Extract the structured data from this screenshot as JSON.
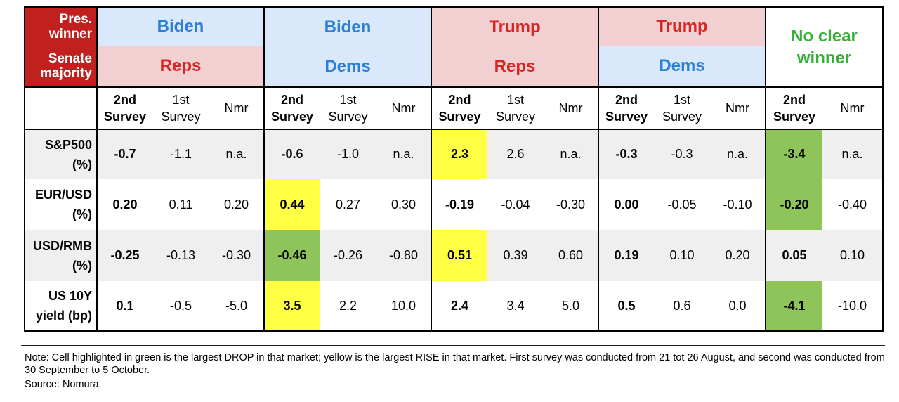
{
  "header": {
    "corner_top": "Pres. winner",
    "corner_bottom": "Senate majority",
    "scenarios": [
      {
        "pres": "Biden",
        "senate": "Reps"
      },
      {
        "pres": "Biden",
        "senate": "Dems"
      },
      {
        "pres": "Trump",
        "senate": "Reps"
      },
      {
        "pres": "Trump",
        "senate": "Dems"
      },
      {
        "pres": "No clear winner"
      }
    ],
    "sub": {
      "second": "2nd Survey",
      "first": "1st Survey",
      "nmr": "Nmr"
    }
  },
  "rows": [
    {
      "label": "S&P500 (%)",
      "values": [
        "-0.7",
        "-1.1",
        "n.a.",
        "-0.6",
        "-1.0",
        "n.a.",
        "2.3",
        "2.6",
        "n.a.",
        "-0.3",
        "-0.3",
        "n.a.",
        "-3.4",
        "n.a."
      ]
    },
    {
      "label": "EUR/USD (%)",
      "values": [
        "0.20",
        "0.11",
        "0.20",
        "0.44",
        "0.27",
        "0.30",
        "-0.19",
        "-0.04",
        "-0.30",
        "0.00",
        "-0.05",
        "-0.10",
        "-0.20",
        "-0.40"
      ]
    },
    {
      "label": "USD/RMB (%)",
      "values": [
        "-0.25",
        "-0.13",
        "-0.30",
        "-0.46",
        "-0.26",
        "-0.80",
        "0.51",
        "0.39",
        "0.60",
        "0.19",
        "0.10",
        "0.20",
        "0.05",
        "0.10"
      ]
    },
    {
      "label": "US 10Y yield (bp)",
      "values": [
        "0.1",
        "-0.5",
        "-5.0",
        "3.5",
        "2.2",
        "10.0",
        "2.4",
        "3.4",
        "5.0",
        "0.5",
        "0.6",
        "0.0",
        "-4.1",
        "-10.0"
      ]
    }
  ],
  "colors": {
    "yellow": "#ffff44",
    "green": "#8fc45a",
    "red": "#c0211f"
  },
  "note": "Note: Cell highlighted in green is the largest DROP in that market; yellow is the largest RISE in that market. First survey was conducted from 21 tot 26 August, and second was conducted from 30 September to 5 October.",
  "source": "Source: Nomura."
}
